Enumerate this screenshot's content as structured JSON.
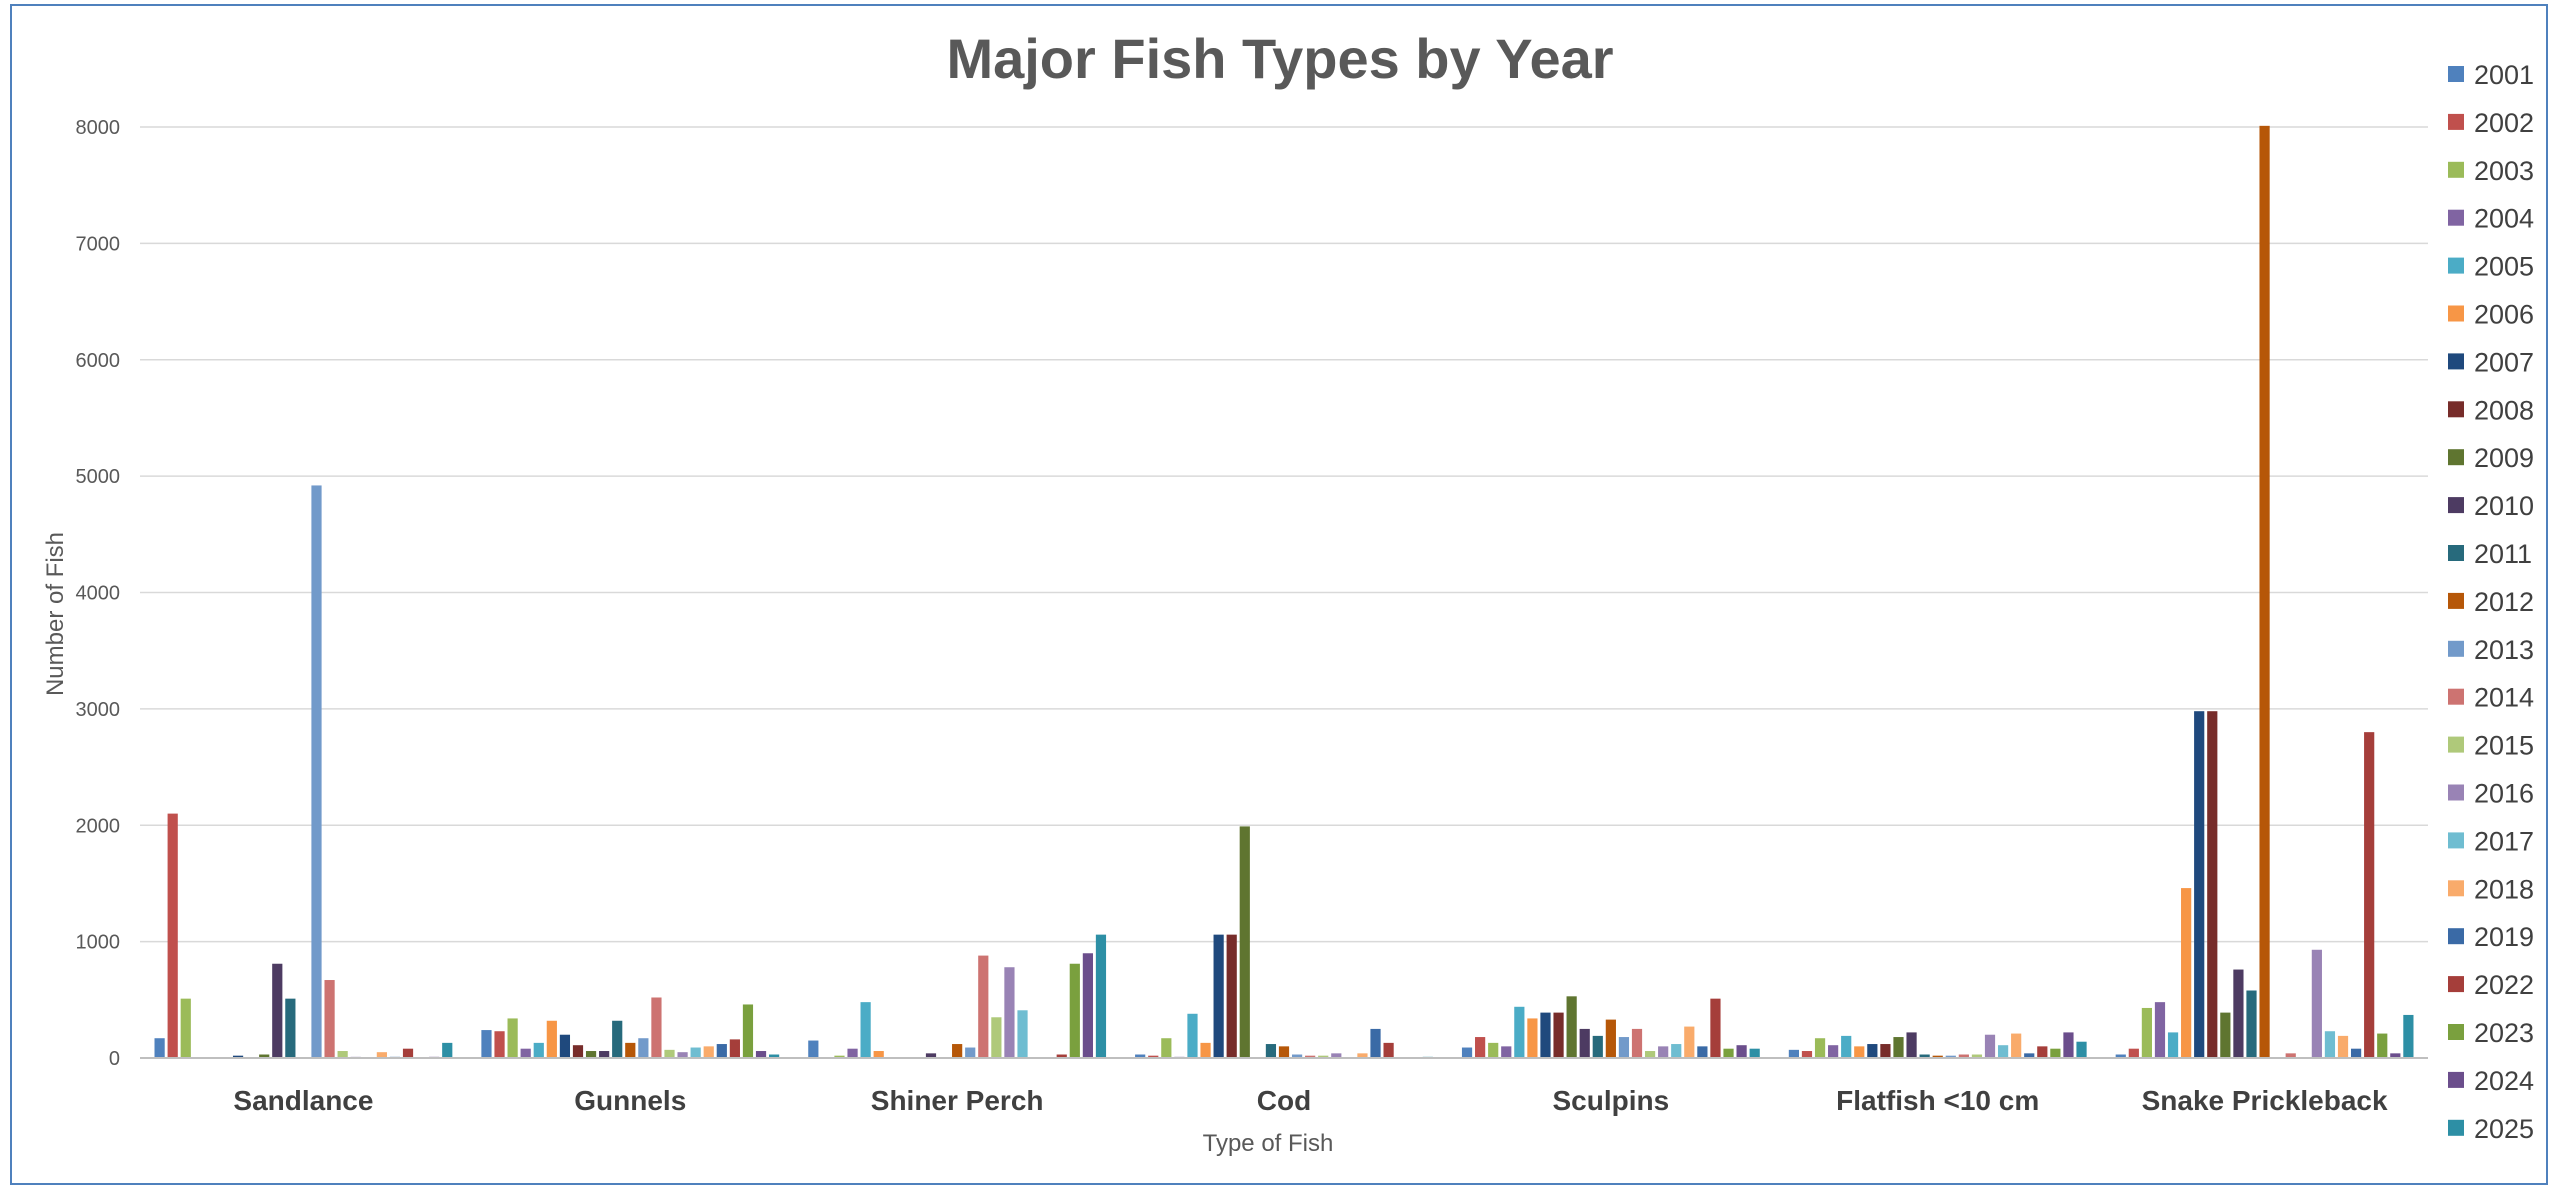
{
  "chart_data": {
    "type": "bar",
    "title": "Major Fish Types by Year",
    "xlabel": "Type of Fish",
    "ylabel": "Number of Fish",
    "ylim": [
      0,
      8000
    ],
    "yticks": [
      0,
      1000,
      2000,
      3000,
      4000,
      5000,
      6000,
      7000,
      8000
    ],
    "grid": true,
    "legend": "right",
    "categories": [
      "Sandlance",
      "Gunnels",
      "Shiner Perch",
      "Cod",
      "Sculpins",
      "Flatfish <10 cm",
      "Snake Prickleback"
    ],
    "series": [
      {
        "name": "2001",
        "color": "#4f81bd",
        "values": [
          170,
          240,
          150,
          30,
          90,
          70,
          30
        ]
      },
      {
        "name": "2002",
        "color": "#c0504d",
        "values": [
          2100,
          230,
          0,
          20,
          180,
          60,
          80
        ]
      },
      {
        "name": "2003",
        "color": "#9bbb59",
        "values": [
          510,
          340,
          20,
          170,
          130,
          170,
          430
        ]
      },
      {
        "name": "2004",
        "color": "#8064a2",
        "values": [
          0,
          80,
          80,
          10,
          100,
          110,
          480
        ]
      },
      {
        "name": "2005",
        "color": "#4bacc6",
        "values": [
          0,
          130,
          480,
          380,
          440,
          190,
          220
        ]
      },
      {
        "name": "2006",
        "color": "#f79646",
        "values": [
          0,
          320,
          60,
          130,
          340,
          100,
          1460
        ]
      },
      {
        "name": "2007",
        "color": "#1f497d",
        "values": [
          20,
          200,
          0,
          1060,
          390,
          120,
          2980
        ]
      },
      {
        "name": "2008",
        "color": "#772c2a",
        "values": [
          0,
          110,
          0,
          1060,
          390,
          120,
          2980
        ]
      },
      {
        "name": "2009",
        "color": "#5f7530",
        "values": [
          30,
          60,
          0,
          1990,
          530,
          180,
          390
        ]
      },
      {
        "name": "2010",
        "color": "#4d3b62",
        "values": [
          810,
          60,
          40,
          0,
          250,
          220,
          760
        ]
      },
      {
        "name": "2011",
        "color": "#276a7c",
        "values": [
          510,
          320,
          0,
          120,
          190,
          30,
          580
        ]
      },
      {
        "name": "2012",
        "color": "#b65708",
        "values": [
          0,
          130,
          120,
          100,
          330,
          20,
          8010
        ]
      },
      {
        "name": "2013",
        "color": "#729aca",
        "values": [
          4920,
          170,
          90,
          30,
          180,
          20,
          0
        ]
      },
      {
        "name": "2014",
        "color": "#cd7371",
        "values": [
          670,
          520,
          880,
          20,
          250,
          30,
          40
        ]
      },
      {
        "name": "2015",
        "color": "#afc97a",
        "values": [
          60,
          70,
          350,
          20,
          60,
          30,
          0
        ]
      },
      {
        "name": "2016",
        "color": "#9983b5",
        "values": [
          10,
          50,
          780,
          40,
          100,
          200,
          930
        ]
      },
      {
        "name": "2017",
        "color": "#6fbdd1",
        "values": [
          0,
          90,
          410,
          0,
          120,
          110,
          230
        ]
      },
      {
        "name": "2018",
        "color": "#f9ab6b",
        "values": [
          50,
          100,
          0,
          40,
          270,
          210,
          190
        ]
      },
      {
        "name": "2019",
        "color": "#3a6aa6",
        "values": [
          10,
          120,
          0,
          250,
          100,
          40,
          80
        ]
      },
      {
        "name": "2022",
        "color": "#a53e3a",
        "values": [
          80,
          160,
          30,
          130,
          510,
          100,
          2800
        ]
      },
      {
        "name": "2023",
        "color": "#7aa03e",
        "values": [
          0,
          460,
          810,
          0,
          80,
          80,
          210
        ]
      },
      {
        "name": "2024",
        "color": "#6b4e8c",
        "values": [
          10,
          60,
          900,
          0,
          110,
          220,
          40
        ]
      },
      {
        "name": "2025",
        "color": "#2d8fa5",
        "values": [
          130,
          30,
          1060,
          10,
          80,
          140,
          370
        ]
      }
    ]
  }
}
